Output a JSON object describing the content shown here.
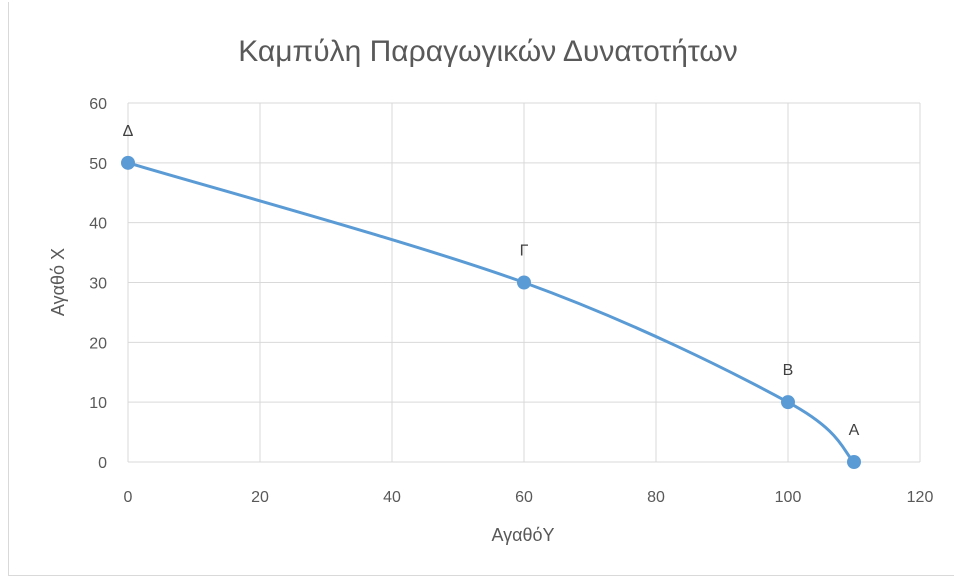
{
  "chart_data": {
    "type": "scatter",
    "title": "Καμπύλη Παραγωγικών Δυνατοτήτων",
    "xlabel": "ΑγαθόY",
    "ylabel": "Αγαθό Χ",
    "xlim": [
      0,
      120
    ],
    "ylim": [
      0,
      60
    ],
    "xticks": [
      0,
      20,
      40,
      60,
      80,
      100,
      120
    ],
    "yticks": [
      0,
      10,
      20,
      30,
      40,
      50,
      60
    ],
    "grid": true,
    "smooth_line": true,
    "line_color": "#5b9bd5",
    "marker_color": "#5b9bd5",
    "points": [
      {
        "label": "Δ",
        "x": 0,
        "y": 50
      },
      {
        "label": "Γ",
        "x": 60,
        "y": 30
      },
      {
        "label": "Β",
        "x": 100,
        "y": 10
      },
      {
        "label": "Α",
        "x": 110,
        "y": 0
      }
    ]
  }
}
